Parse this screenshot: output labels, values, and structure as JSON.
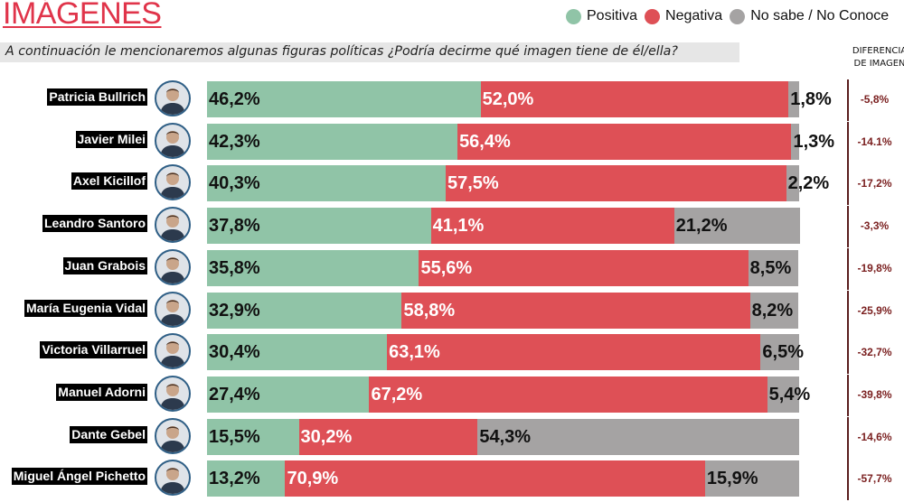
{
  "title": "IMÁGENES",
  "subtitle": "A continuación le mencionaremos algunas figuras políticas ¿Podría decirme qué imagen tiene de él/ella?",
  "diff_header": {
    "line1": "DIFERENCIA",
    "line2": "DE IMAGEN"
  },
  "colors": {
    "positive": "#90c4a7",
    "negative": "#de5056",
    "no_sabe": "#a5a3a3",
    "title": "#e0344a",
    "diff_text": "#7a1f1f"
  },
  "chart_data": {
    "type": "bar",
    "orientation": "horizontal",
    "stacked": true,
    "title": "IMÁGENES",
    "legend_position": "top-right",
    "legend": [
      "Positiva",
      "Negativa",
      "No sabe / No Conoce"
    ],
    "categories": [
      "Patricia Bullrich",
      "Javier Milei",
      "Axel Kicillof",
      "Leandro Santoro",
      "Juan Grabois",
      "María Eugenia Vidal",
      "Victoria Villarruel",
      "Manuel Adorni",
      "Dante Gebel",
      "Miguel Ángel Pichetto"
    ],
    "series": [
      {
        "name": "Positiva",
        "values": [
          46.2,
          42.3,
          40.3,
          37.8,
          35.8,
          32.9,
          30.4,
          27.4,
          15.5,
          13.2
        ],
        "labels": [
          "46,2%",
          "42,3%",
          "40,3%",
          "37,8%",
          "35,8%",
          "32,9%",
          "30,4%",
          "27,4%",
          "15,5%",
          "13,2%"
        ]
      },
      {
        "name": "Negativa",
        "values": [
          52.0,
          56.4,
          57.5,
          41.1,
          55.6,
          58.8,
          63.1,
          67.2,
          30.2,
          70.9
        ],
        "labels": [
          "52,0%",
          "56,4%",
          "57,5%",
          "41,1%",
          "55,6%",
          "58,8%",
          "63,1%",
          "67,2%",
          "30,2%",
          "70,9%"
        ]
      },
      {
        "name": "No sabe / No Conoce",
        "values": [
          1.8,
          1.3,
          2.2,
          21.2,
          8.5,
          8.2,
          6.5,
          5.4,
          54.3,
          15.9
        ],
        "labels": [
          "1,8%",
          "1,3%",
          "2,2%",
          "21,2%",
          "8,5%",
          "8,2%",
          "6,5%",
          "5,4%",
          "54,3%",
          "15,9%"
        ]
      }
    ],
    "diferencia": [
      "-5,8%",
      "-14.1%",
      "-17,2%",
      "-3,3%",
      "-19,8%",
      "-25,9%",
      "-32,7%",
      "-39,8%",
      "-14,6%",
      "-57,7%"
    ],
    "xlim": [
      0,
      100
    ]
  }
}
